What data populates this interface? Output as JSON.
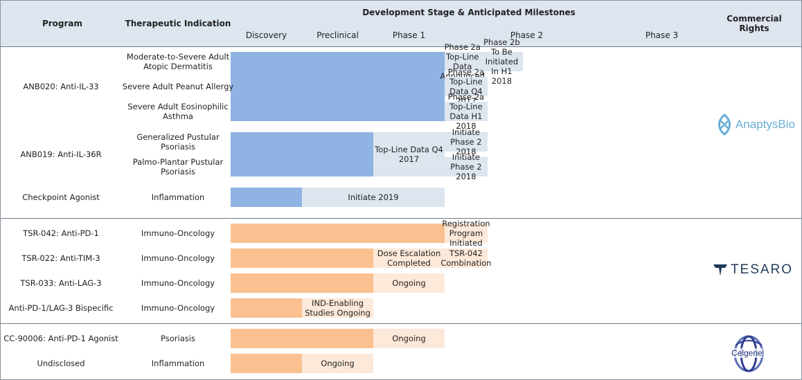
{
  "headers": {
    "program": "Program",
    "indication": "Therapeutic Indication",
    "stage_title": "Development Stage & Anticipated Milestones",
    "rights": "Commercial Rights",
    "stages": [
      "Discovery",
      "Preclinical",
      "Phase 1",
      "Phase 2",
      "Phase 3"
    ]
  },
  "colors": {
    "anaptys_bar": "#8fb4e3",
    "anaptys_milestone": "#dde5ef",
    "orange_bar": "#fac090",
    "orange_milestone": "#fde9d9"
  },
  "companies": [
    {
      "name": "AnaptysBio",
      "logo_text": "AnaptysBio",
      "icon": "anaptysbio-logo-icon"
    },
    {
      "name": "TESARO",
      "logo_text": "TESARO",
      "icon": "tesaro-logo-icon"
    },
    {
      "name": "Celgene",
      "logo_text": "Celgene",
      "icon": "celgene-logo-icon"
    }
  ],
  "chart_data": {
    "type": "table",
    "title": "Development Stage & Anticipated Milestones",
    "stages": [
      "Discovery",
      "Preclinical",
      "Phase 1",
      "Phase 2",
      "Phase 3"
    ],
    "programs": [
      {
        "program": "ANB020: Anti-IL-33",
        "group": "anaptys",
        "rows": [
          {
            "indication": "Moderate-to-Severe Adult Atopic Dermatitis",
            "progress_end": 3,
            "milestones": [
              {
                "text": "Phase 2a Top-Line Data Announced",
                "start": 3,
                "end": 3.5
              },
              {
                "text": "Phase 2b To Be Initiated In H1 2018",
                "start": 3.5,
                "end": 4.1
              }
            ]
          },
          {
            "indication": "Severe Adult Peanut Allergy",
            "progress_end": 3,
            "milestones": [
              {
                "text": "Phase 2a Top-Line Data Q4 2017",
                "start": 3,
                "end": 3.6
              }
            ]
          },
          {
            "indication": "Severe Adult Eosinophilic Asthma",
            "progress_end": 3,
            "milestones": [
              {
                "text": "Phase 2a Top-Line Data H1 2018",
                "start": 3,
                "end": 3.6
              }
            ]
          }
        ]
      },
      {
        "program": "ANB019: Anti-IL-36R",
        "group": "anaptys",
        "rows": [
          {
            "indication": "Generalized Pustular Psoriasis",
            "progress_end": 2,
            "milestones": [
              {
                "text": "Initiate Phase 2 2018",
                "start": 3,
                "end": 3.6
              }
            ]
          },
          {
            "indication": "Palmo-Plantar Pustular Psoriasis",
            "progress_end": 2,
            "milestones": [
              {
                "text": "Initiate Phase 2 2018",
                "start": 3,
                "end": 3.6
              }
            ]
          }
        ],
        "shared_milestone": {
          "text": "Top-Line Data Q4 2017",
          "start": 2,
          "end": 3
        }
      },
      {
        "program": "Checkpoint Agonist",
        "group": "anaptys",
        "rows": [
          {
            "indication": "Inflammation",
            "progress_end": 1,
            "milestones": [
              {
                "text": "Initiate 2019",
                "start": 1,
                "end": 3
              }
            ]
          }
        ]
      },
      {
        "program": "TSR-042: Anti-PD-1",
        "group": "tesaro",
        "rows": [
          {
            "indication": "Immuno-Oncology",
            "progress_end": 3,
            "milestones": [
              {
                "text": "Registration Program Initiated",
                "start": 3,
                "end": 3.6
              }
            ]
          }
        ]
      },
      {
        "program": "TSR-022: Anti-TIM-3",
        "group": "tesaro",
        "rows": [
          {
            "indication": "Immuno-Oncology",
            "progress_end": 2,
            "milestones": [
              {
                "text": "Dose Escalation Completed",
                "start": 2,
                "end": 3
              },
              {
                "text": "TSR-042 Combination",
                "start": 3,
                "end": 3.6
              }
            ]
          }
        ]
      },
      {
        "program": "TSR-033: Anti-LAG-3",
        "group": "tesaro",
        "rows": [
          {
            "indication": "Immuno-Oncology",
            "progress_end": 2,
            "milestones": [
              {
                "text": "Ongoing",
                "start": 2,
                "end": 3
              }
            ]
          }
        ]
      },
      {
        "program": "Anti-PD-1/LAG-3 Bispecific",
        "group": "tesaro",
        "rows": [
          {
            "indication": "Immuno-Oncology",
            "progress_end": 1,
            "milestones": [
              {
                "text": "IND-Enabling Studies Ongoing",
                "start": 1,
                "end": 2
              }
            ]
          }
        ]
      },
      {
        "program": "CC-90006: Anti-PD-1 Agonist",
        "group": "celgene",
        "rows": [
          {
            "indication": "Psoriasis",
            "progress_end": 2,
            "milestones": [
              {
                "text": "Ongoing",
                "start": 2,
                "end": 3
              }
            ]
          }
        ]
      },
      {
        "program": "Undisclosed",
        "group": "celgene",
        "rows": [
          {
            "indication": "Inflammation",
            "progress_end": 1,
            "milestones": [
              {
                "text": "Ongoing",
                "start": 1,
                "end": 2
              }
            ]
          }
        ]
      }
    ]
  }
}
